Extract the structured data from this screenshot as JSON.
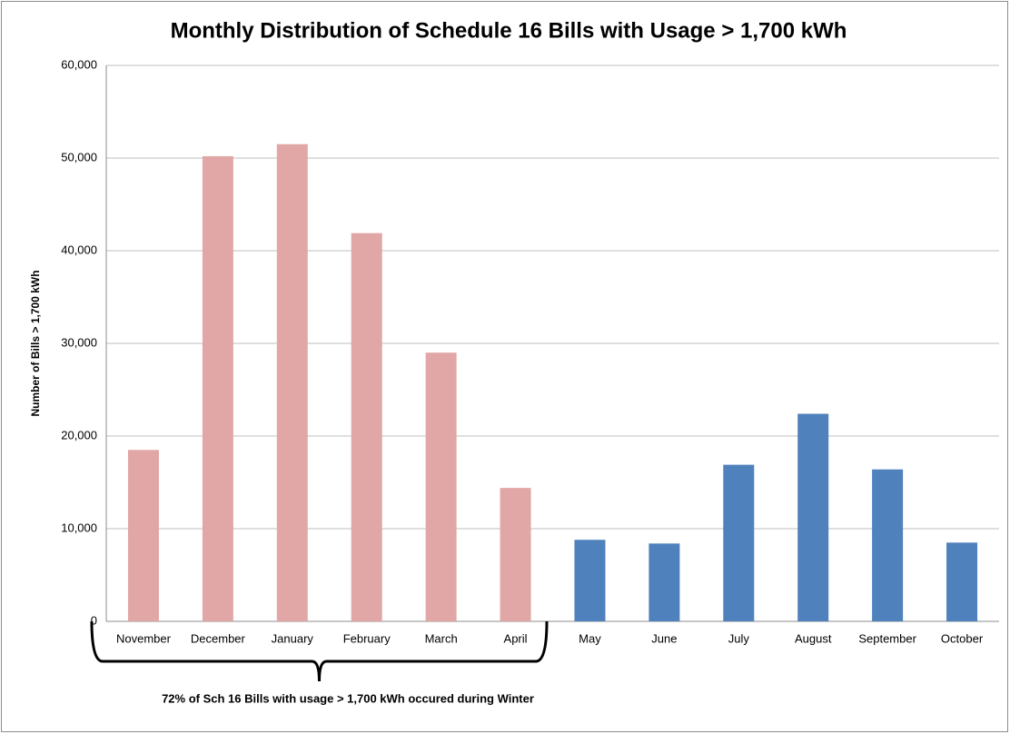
{
  "chart_data": {
    "type": "bar",
    "title": "Monthly Distribution of Schedule 16 Bills with Usage > 1,700 kWh",
    "y_label": "Number of Bills > 1,700 kWh",
    "annotation": "72% of Sch 16 Bills with usage > 1,700 kWh occured during Winter",
    "categories": [
      "November",
      "December",
      "January",
      "February",
      "March",
      "April",
      "May",
      "June",
      "July",
      "August",
      "September",
      "October"
    ],
    "values": [
      18500,
      50200,
      51500,
      41900,
      29000,
      14400,
      8800,
      8400,
      16900,
      22400,
      16400,
      8500
    ],
    "colors": [
      "#e0a7a6",
      "#e0a7a6",
      "#e0a7a6",
      "#e0a7a6",
      "#e0a7a6",
      "#e0a7a6",
      "#4f81bd",
      "#4f81bd",
      "#4f81bd",
      "#4f81bd",
      "#4f81bd",
      "#4f81bd"
    ],
    "ylim": [
      0,
      60000
    ],
    "yticks": [
      0,
      {
        "value": 10000,
        "label": "10,000"
      },
      {
        "value": 20000,
        "label": "20,000"
      },
      {
        "value": 30000,
        "label": "30,000"
      },
      {
        "value": 40000,
        "label": "40,000"
      },
      {
        "value": 50000,
        "label": "50,000"
      },
      {
        "value": 60000,
        "label": "60,000"
      }
    ],
    "grid": true
  }
}
